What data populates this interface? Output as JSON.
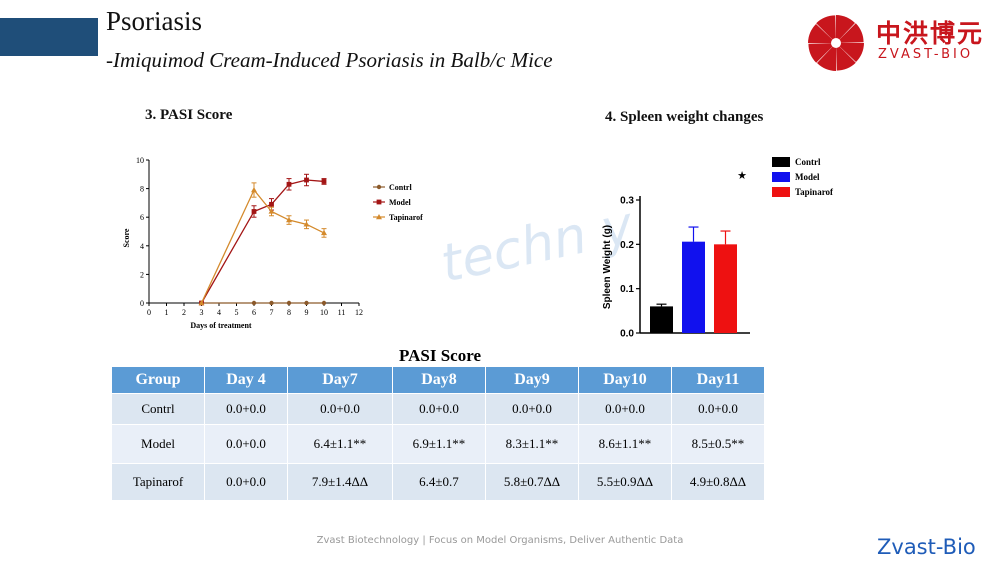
{
  "header": {
    "title": "Psoriasis",
    "subtitle_lead": "-",
    "subtitle": "Imiquimod Cream-Induced Psoriasis in Balb/c Mice",
    "logo_cn": "中洪博元",
    "logo_en": "ZVAST-BIO"
  },
  "watermark": "techn  y",
  "colors": {
    "brand_red": "#c8161d",
    "header_blue": "#1f4e79",
    "table_blue": "#5b9bd5",
    "contrl": "#8c5a2b",
    "model": "#a31515",
    "tapinarof": "#d48a2c"
  },
  "chart_data": [
    {
      "type": "line",
      "title": "3. PASI Score",
      "xlabel": "Days of treatment",
      "ylabel": "Score",
      "xlim": [
        0,
        12
      ],
      "ylim": [
        0,
        10
      ],
      "xticks": [
        "0",
        "1",
        "2",
        "3",
        "4",
        "5",
        "6",
        "7",
        "8",
        "9",
        "10",
        "11",
        "12"
      ],
      "yticks": [
        "0",
        "2",
        "4",
        "6",
        "8",
        "10"
      ],
      "legend": "right",
      "series": [
        {
          "name": "Contrl",
          "marker": "circle",
          "x": [
            3,
            6,
            7,
            8,
            9,
            10
          ],
          "y": [
            0,
            0,
            0,
            0,
            0,
            0
          ],
          "err": [
            0,
            0,
            0,
            0,
            0,
            0
          ]
        },
        {
          "name": "Model",
          "marker": "square",
          "x": [
            3,
            6,
            7,
            8,
            9,
            10
          ],
          "y": [
            0,
            6.4,
            6.9,
            8.3,
            8.6,
            8.5
          ],
          "err": [
            0,
            0.4,
            0.4,
            0.4,
            0.4,
            0.2
          ]
        },
        {
          "name": "Tapinarof",
          "marker": "triangle",
          "x": [
            3,
            6,
            7,
            8,
            9,
            10
          ],
          "y": [
            0,
            7.9,
            6.4,
            5.8,
            5.5,
            4.9
          ],
          "err": [
            0,
            0.5,
            0.3,
            0.3,
            0.3,
            0.3
          ]
        }
      ]
    },
    {
      "type": "bar",
      "title": "4. Spleen weight changes",
      "ylabel": "Spleen Weight (g)",
      "ylim": [
        0,
        0.3
      ],
      "yticks": [
        "0.0",
        "0.1",
        "0.2",
        "0.3"
      ],
      "categories": [
        "Contrl",
        "Model",
        "Tapinarof"
      ],
      "values": [
        0.06,
        0.206,
        0.2
      ],
      "errors": [
        0.005,
        0.033,
        0.03
      ],
      "bar_colors": [
        "#000000",
        "#1111ee",
        "#ee1111"
      ],
      "annotation": "★",
      "legend": "top-right"
    }
  ],
  "table": {
    "title": "PASI Score",
    "headers": [
      "Group",
      "Day 4",
      "Day7",
      "Day8",
      "Day9",
      "Day10",
      "Day11"
    ],
    "rows": [
      {
        "cells": [
          "Contrl",
          "0.0+0.0",
          "0.0+0.0",
          "0.0+0.0",
          "0.0+0.0",
          "0.0+0.0",
          "0.0+0.0"
        ]
      },
      {
        "cells": [
          "Model",
          "0.0+0.0",
          "6.4±1.1**",
          "6.9±1.1**",
          "8.3±1.1**",
          "8.6±1.1**",
          "8.5±0.5**"
        ]
      },
      {
        "cells": [
          "Tapinarof",
          "0.0+0.0",
          "7.9±1.4ΔΔ",
          "6.4±0.7",
          "5.8±0.7ΔΔ",
          "5.5±0.9ΔΔ",
          "4.9±0.8ΔΔ"
        ]
      }
    ]
  },
  "footer": "Zvast Biotechnology | Focus on Model Organisms, Deliver Authentic Data",
  "brand": "Zvast-Bio"
}
